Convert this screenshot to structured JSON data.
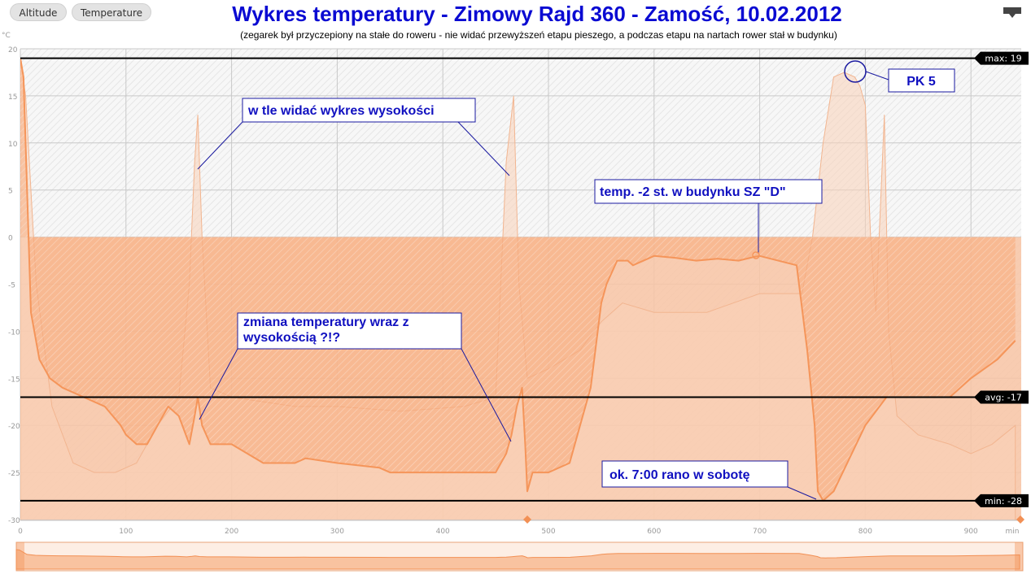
{
  "tabs": [
    {
      "label": "Altitude"
    },
    {
      "label": "Temperature"
    }
  ],
  "title": "Wykres temperatury - Zimowy Rajd 360 - Zamość, 10.02.2012",
  "subtitle": "(zegarek był przyczepiony na stałe do roweru - nie widać przewyższeń etapu pieszego, a podczas etapu na nartach rower stał w budynku)",
  "menu_icon": "export-menu-icon",
  "colors": {
    "series": "#f5955a",
    "altitude_fill": "#f9d2b8",
    "annotation_text": "#1010c0",
    "annotation_border": "#1a1aa0",
    "band": "#f8c4a4"
  },
  "annotations": [
    {
      "text": "w tle widać wykres wysokości"
    },
    {
      "text": "temp. -2 st. w budynku SZ \"D\""
    },
    {
      "text": "PK 5"
    },
    {
      "text": "zmiana temperatury wraz z wysokością ?!?"
    },
    {
      "text": "ok. 7:00 rano w sobotę"
    }
  ],
  "chart_data": {
    "type": "area",
    "ylabel": "°C",
    "xunit": "min",
    "xlim": [
      0,
      945
    ],
    "ylim": [
      -30,
      20
    ],
    "xticks": [
      0,
      100,
      200,
      300,
      400,
      500,
      600,
      700,
      800,
      900
    ],
    "yticks": [
      20,
      15,
      10,
      5,
      0,
      -5,
      -10,
      -15,
      -20,
      -25,
      -30
    ],
    "grid": true,
    "plot_bands": [
      {
        "from": -30,
        "to": 0,
        "note": "shaded below-zero band"
      }
    ],
    "plot_lines": [
      {
        "label": "max: 19",
        "value": 19
      },
      {
        "label": "avg: -17",
        "value": -17
      },
      {
        "label": "min: -28",
        "value": -28
      }
    ],
    "series": [
      {
        "x": [
          0,
          3,
          10,
          18,
          28,
          40,
          60,
          80,
          95,
          100,
          110,
          120,
          130,
          140,
          150,
          160,
          165,
          168,
          172,
          180,
          190,
          200,
          230,
          260,
          270,
          300,
          340,
          350,
          380,
          420,
          450,
          455,
          460,
          465,
          470,
          475,
          478,
          480,
          485,
          500,
          520,
          530,
          540,
          550,
          555,
          565,
          575,
          580,
          600,
          620,
          640,
          660,
          680,
          695,
          700,
          735,
          745,
          752,
          755,
          760,
          770,
          800,
          820,
          850,
          880,
          900,
          925,
          942
        ],
        "y": [
          19,
          17,
          -8,
          -13,
          -15,
          -16,
          -17,
          -18,
          -20,
          -21,
          -22,
          -22,
          -20,
          -18,
          -19,
          -22,
          -19,
          -17,
          -20,
          -22,
          -22,
          -22,
          -24,
          -24,
          -23.5,
          -24,
          -24.5,
          -25,
          -25,
          -25,
          -25,
          -24,
          -23,
          -21,
          -18,
          -16,
          -22,
          -27,
          -25,
          -25,
          -24,
          -20,
          -16,
          -7,
          -5,
          -2.5,
          -2.5,
          -3,
          -2,
          -2.2,
          -2.5,
          -2.3,
          -2.5,
          -2.1,
          -2.0,
          -3.0,
          -12,
          -20,
          -27,
          -28,
          -27,
          -20,
          -17,
          -17,
          -17,
          -15,
          -13,
          -11
        ]
      },
      {
        "name": "Altitude",
        "x": [
          0,
          5,
          15,
          30,
          50,
          70,
          90,
          110,
          130,
          150,
          160,
          165,
          168,
          172,
          180,
          200,
          260,
          300,
          360,
          420,
          450,
          460,
          467,
          472,
          480,
          500,
          530,
          550,
          570,
          600,
          650,
          700,
          740,
          750,
          760,
          770,
          780,
          790,
          795,
          800,
          805,
          810,
          818,
          822,
          830,
          850,
          880,
          900,
          920,
          942
        ],
        "y": [
          19,
          15,
          -5,
          -18,
          -24,
          -25,
          -25,
          -24,
          -20,
          -17,
          -5,
          8,
          13,
          0,
          -16,
          -17,
          -18,
          -18,
          -18.5,
          -18,
          -17,
          8,
          15,
          -5,
          -15,
          -14,
          -12,
          -9,
          -7,
          -8,
          -8,
          -6,
          -6,
          0,
          10,
          17,
          17.5,
          17,
          16,
          14,
          0,
          -8,
          13,
          -10,
          -19,
          -21,
          -22,
          -23,
          -22,
          -20
        ]
      }
    ]
  },
  "navigator": {
    "label": "navigator"
  }
}
